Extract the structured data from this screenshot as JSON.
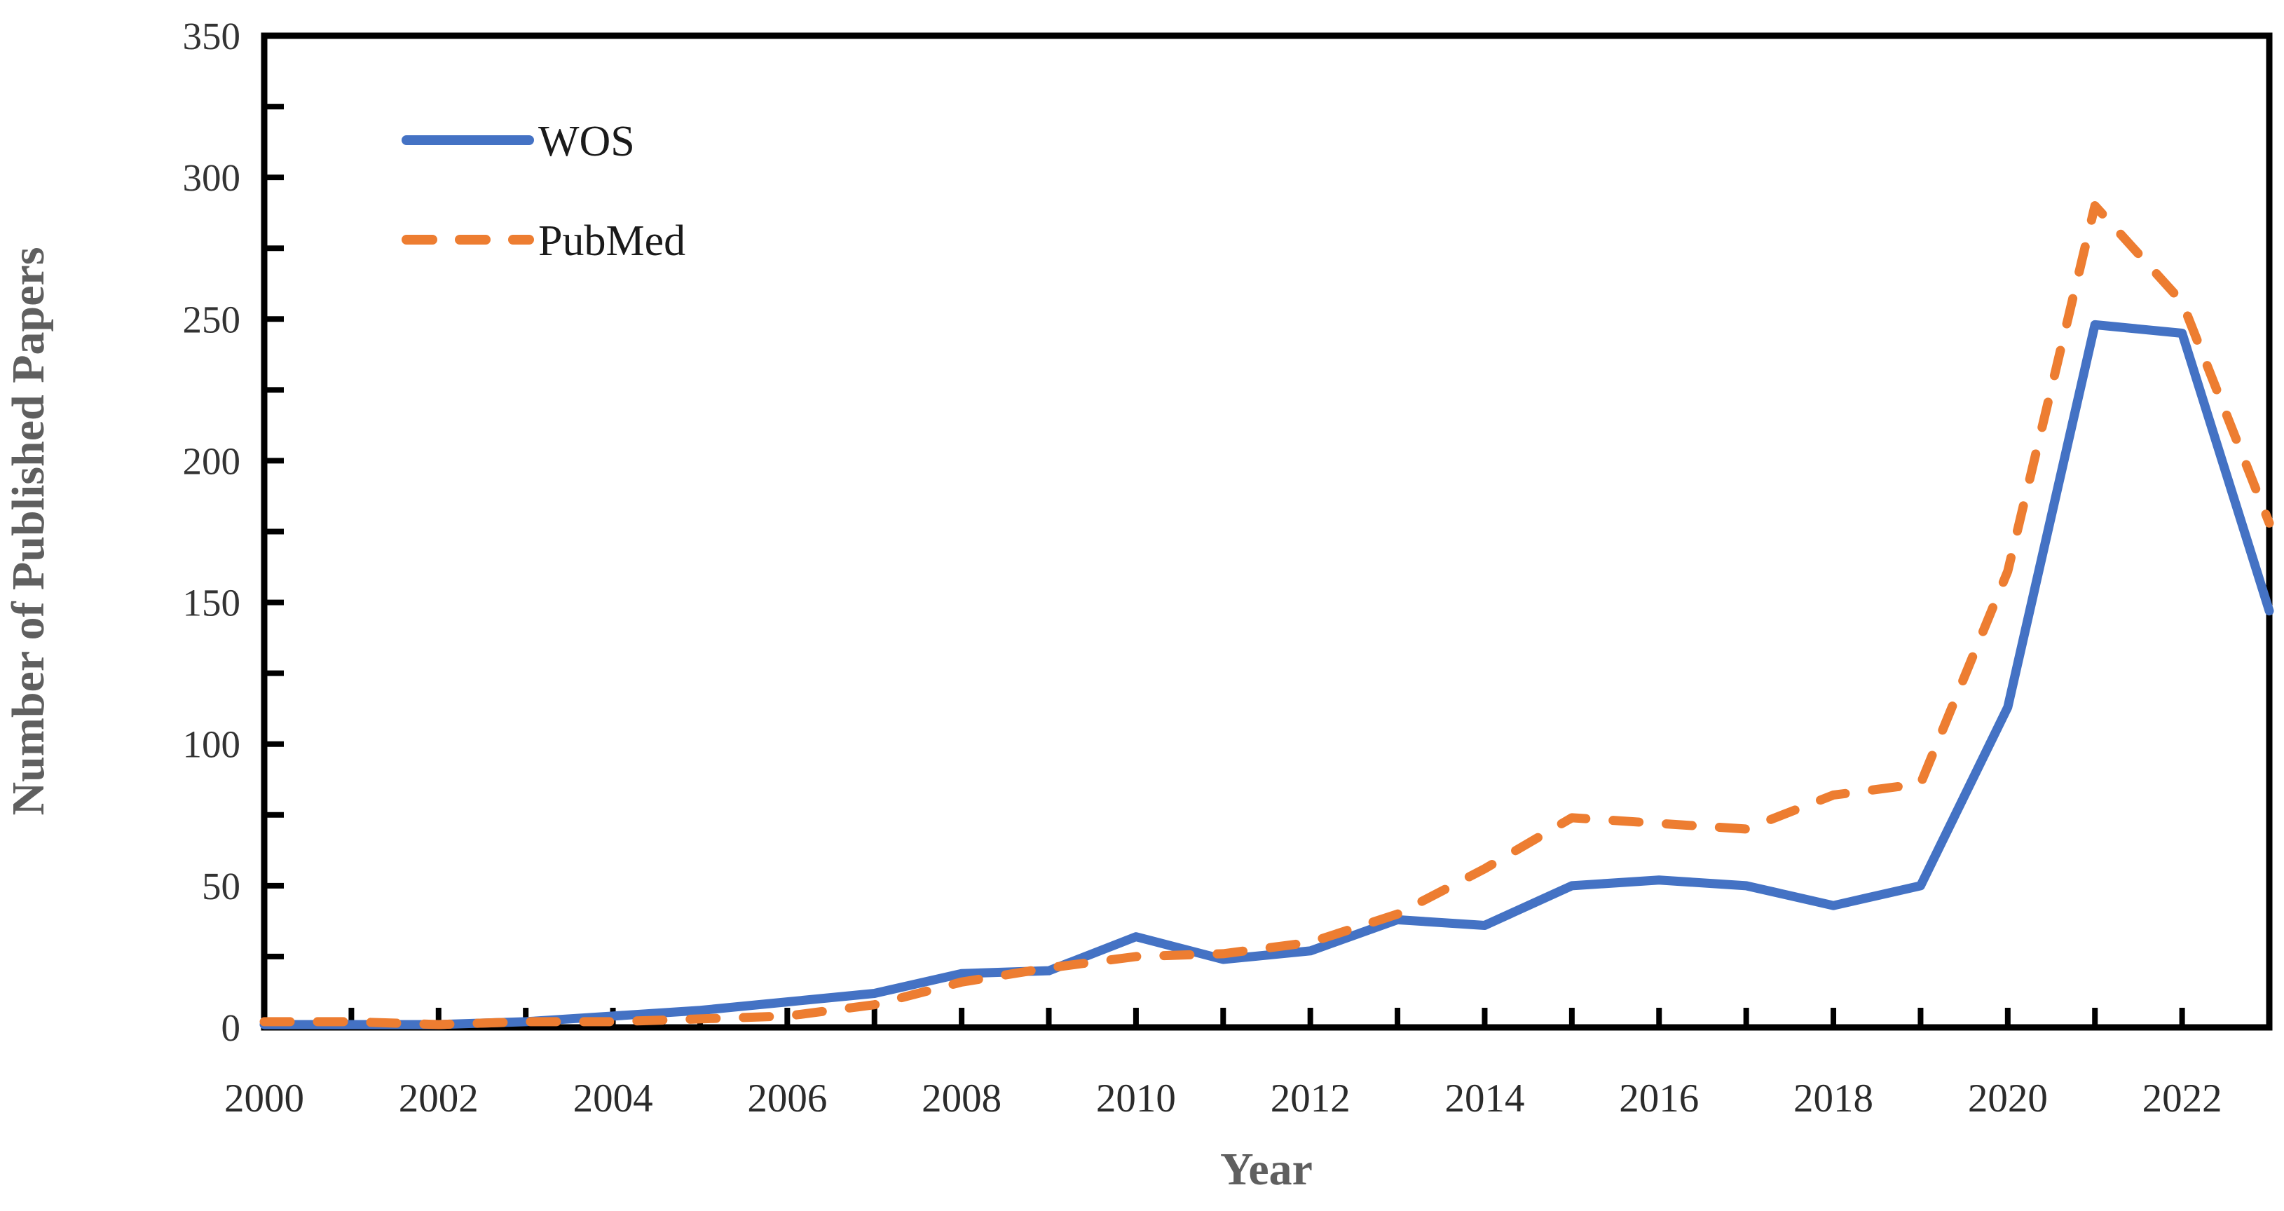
{
  "chart_data": {
    "type": "line",
    "title": "",
    "xlabel": "Year",
    "ylabel": "Number of Published Papers",
    "x": [
      2000,
      2001,
      2002,
      2003,
      2004,
      2005,
      2006,
      2007,
      2008,
      2009,
      2010,
      2011,
      2012,
      2013,
      2014,
      2015,
      2016,
      2017,
      2018,
      2019,
      2020,
      2021,
      2022,
      2023
    ],
    "xlim": [
      2000,
      2023
    ],
    "ylim": [
      0,
      350
    ],
    "x_tick_step": 1,
    "x_label_step": 2,
    "y_tick_minor": 25,
    "y_tick_major": 50,
    "grid": false,
    "legend_position": "inside-top-left",
    "axis_color": "#000000",
    "tick_label_color": "#333333",
    "axis_title_color": "#5f5f5f",
    "legend_text_color": "#1a1a1a",
    "series": [
      {
        "name": "WOS",
        "color": "#4472C4",
        "line_style": "solid",
        "values": [
          1,
          1,
          1,
          2,
          4,
          6,
          9,
          12,
          19,
          20,
          32,
          24,
          27,
          38,
          36,
          50,
          52,
          50,
          43,
          50,
          113,
          248,
          245,
          147
        ]
      },
      {
        "name": "PubMed",
        "color": "#ED7D31",
        "line_style": "dashed",
        "values": [
          2,
          2,
          1,
          2,
          2,
          3,
          4,
          8,
          16,
          21,
          25,
          26,
          30,
          40,
          56,
          74,
          72,
          70,
          82,
          86,
          161,
          290,
          256,
          178
        ]
      }
    ]
  }
}
